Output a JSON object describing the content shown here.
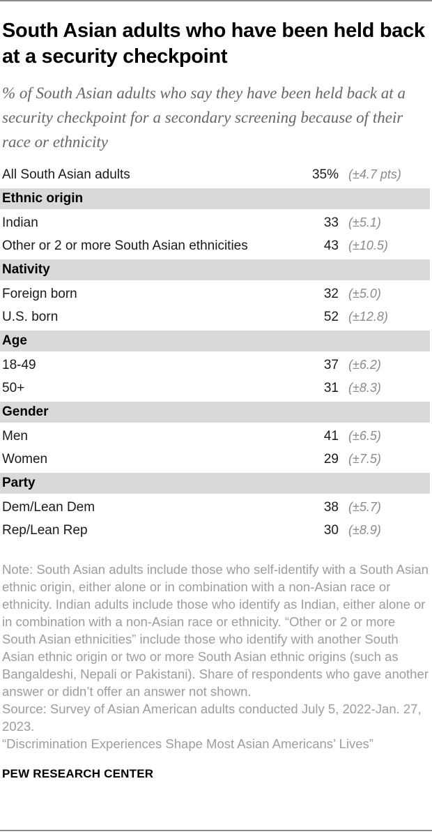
{
  "colors": {
    "section_band": "#d9d9d9",
    "rule": "#8c8c8c",
    "title_text": "#000000",
    "body_text": "#1a1a1a",
    "subtitle_text": "#666666",
    "moe_text": "#8b8b8b",
    "note_text": "#9d9d9d"
  },
  "header": {
    "title": "South Asian adults who have been held back at a security checkpoint",
    "subtitle": "% of South Asian adults who say they have been held back at a security checkpoint for a secondary screening because of their race or ethnicity"
  },
  "chart_data": {
    "type": "table",
    "title": "South Asian adults who have been held back at a security checkpoint",
    "subtitle": "% of South Asian adults who say they have been held back at a security checkpoint for a secondary screening because of their race or ethnicity",
    "columns": [
      "group",
      "percent",
      "margin_of_error"
    ],
    "rows": [
      {
        "type": "data",
        "label": "All South Asian adults",
        "value": "35%",
        "value_num": 35,
        "moe": "(±4.7 pts)",
        "moe_num": 4.7
      },
      {
        "type": "section",
        "label": "Ethnic origin"
      },
      {
        "type": "data",
        "label": "Indian",
        "value": "33",
        "value_num": 33,
        "moe": "(±5.1)",
        "moe_num": 5.1
      },
      {
        "type": "data",
        "label": "Other or 2 or more South Asian ethnicities",
        "value": "43",
        "value_num": 43,
        "moe": "(±10.5)",
        "moe_num": 10.5
      },
      {
        "type": "section",
        "label": "Nativity"
      },
      {
        "type": "data",
        "label": "Foreign born",
        "value": "32",
        "value_num": 32,
        "moe": "(±5.0)",
        "moe_num": 5.0
      },
      {
        "type": "data",
        "label": "U.S. born",
        "value": "52",
        "value_num": 52,
        "moe": "(±12.8)",
        "moe_num": 12.8
      },
      {
        "type": "section",
        "label": "Age"
      },
      {
        "type": "data",
        "label": "18-49",
        "value": "37",
        "value_num": 37,
        "moe": "(±6.2)",
        "moe_num": 6.2
      },
      {
        "type": "data",
        "label": "50+",
        "value": "31",
        "value_num": 31,
        "moe": "(±8.3)",
        "moe_num": 8.3
      },
      {
        "type": "section",
        "label": "Gender"
      },
      {
        "type": "data",
        "label": "Men",
        "value": "41",
        "value_num": 41,
        "moe": "(±6.5)",
        "moe_num": 6.5
      },
      {
        "type": "data",
        "label": "Women",
        "value": "29",
        "value_num": 29,
        "moe": "(±7.5)",
        "moe_num": 7.5
      },
      {
        "type": "section",
        "label": "Party"
      },
      {
        "type": "data",
        "label": "Dem/Lean Dem",
        "value": "38",
        "value_num": 38,
        "moe": "(±5.7)",
        "moe_num": 5.7
      },
      {
        "type": "data",
        "label": "Rep/Lean Rep",
        "value": "30",
        "value_num": 30,
        "moe": "(±8.9)",
        "moe_num": 8.9
      }
    ]
  },
  "footer": {
    "note": "Note: South Asian adults include those who self-identify with a South Asian ethnic origin, either alone or in combination with a non-Asian race or ethnicity. Indian adults include those who identify as Indian, either alone or in combination with a non-Asian race or ethnicity. “Other or 2 or more South Asian ethnicities” include those who identify with another South Asian ethnic origin or two or more South Asian ethnic origins (such as Bangaldeshi, Nepali or Pakistani). Share of respondents who gave another answer or didn’t offer an answer not shown.",
    "source": "Source: Survey of Asian American adults conducted July 5, 2022-Jan. 27, 2023.",
    "report": "“Discrimination Experiences Shape Most Asian Americans’ Lives”",
    "brand": "PEW RESEARCH CENTER"
  }
}
